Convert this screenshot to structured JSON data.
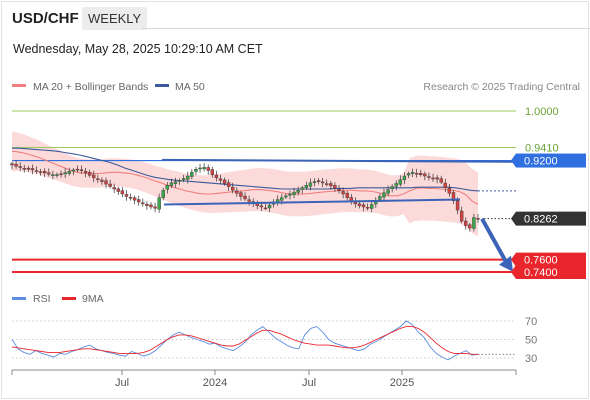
{
  "header": {
    "symbol": "USD/CHF",
    "timeframe": "WEEKLY",
    "timestamp": "Wednesday, May 28, 2025 10:29:10 AM CET"
  },
  "colors": {
    "ma20": "#f08080",
    "ma50": "#3a5a9c",
    "band_fill": "#fbd3d3",
    "bull": "#3aa84a",
    "bear": "#d24444",
    "resistance": "#9ccb5c",
    "pivot": "#2f6fe0",
    "support": "#e8262b",
    "trend": "#3b64b8",
    "rsi": "#5b8de0",
    "rsi_ma": "#e8262b",
    "current": "#333333"
  },
  "main_legend": {
    "ma20_label": "MA 20 + Bollinger Bands",
    "ma50_label": "MA 50",
    "credit": "Research © 2025 Trading Central"
  },
  "rsi_legend": {
    "rsi_label": "RSI",
    "ma_label": "9MA"
  },
  "chart_data": [
    {
      "type": "candlestick",
      "title": "USD/CHF",
      "ylim": [
        0.735,
        1.015
      ],
      "x_ticks": [
        "Jul",
        "2024",
        "Jul",
        "2025"
      ],
      "series": [
        {
          "name": "MA 20 + Bollinger Bands"
        },
        {
          "name": "MA 50"
        }
      ],
      "close": [
        0.9128,
        0.9108,
        0.909,
        0.907,
        0.906,
        0.9048,
        0.903,
        0.9015,
        0.8998,
        0.898,
        0.897,
        0.8972,
        0.8985,
        0.9005,
        0.9025,
        0.9048,
        0.906,
        0.904,
        0.9,
        0.896,
        0.892,
        0.889,
        0.886,
        0.882,
        0.878,
        0.874,
        0.87,
        0.866,
        0.862,
        0.859,
        0.856,
        0.853,
        0.85,
        0.847,
        0.845,
        0.843,
        0.86,
        0.872,
        0.88,
        0.884,
        0.886,
        0.888,
        0.891,
        0.895,
        0.901,
        0.906,
        0.908,
        0.909,
        0.904,
        0.897,
        0.892,
        0.888,
        0.883,
        0.878,
        0.872,
        0.867,
        0.862,
        0.858,
        0.854,
        0.85,
        0.847,
        0.845,
        0.843,
        0.848,
        0.853,
        0.857,
        0.86,
        0.863,
        0.866,
        0.869,
        0.872,
        0.876,
        0.88,
        0.884,
        0.886,
        0.886,
        0.884,
        0.882,
        0.879,
        0.875,
        0.871,
        0.866,
        0.86,
        0.855,
        0.85,
        0.847,
        0.845,
        0.844,
        0.849,
        0.856,
        0.862,
        0.868,
        0.873,
        0.878,
        0.883,
        0.889,
        0.895,
        0.899,
        0.901,
        0.899,
        0.897,
        0.895,
        0.893,
        0.891,
        0.89,
        0.885,
        0.876,
        0.867,
        0.855,
        0.84,
        0.822,
        0.815,
        0.811,
        0.828,
        0.826
      ],
      "ma20": [
        0.935,
        0.934,
        0.932,
        0.929,
        0.926,
        0.922,
        0.918,
        0.914,
        0.91,
        0.906,
        0.902,
        0.9,
        0.899,
        0.899,
        0.899,
        0.9,
        0.901,
        0.901,
        0.9,
        0.899,
        0.897,
        0.894,
        0.891,
        0.887,
        0.884,
        0.88,
        0.877,
        0.874,
        0.871,
        0.869,
        0.867,
        0.866,
        0.866,
        0.867,
        0.868,
        0.869,
        0.87,
        0.871,
        0.872,
        0.873,
        0.873,
        0.872,
        0.871,
        0.869,
        0.867,
        0.866,
        0.866,
        0.866,
        0.867,
        0.868,
        0.869,
        0.87,
        0.871,
        0.872,
        0.872,
        0.872,
        0.871,
        0.871,
        0.87,
        0.868,
        0.865,
        0.863,
        0.863,
        0.866,
        0.871,
        0.875,
        0.876,
        0.875,
        0.875,
        0.874,
        0.873,
        0.872,
        0.87,
        0.865,
        0.855,
        0.849
      ],
      "ma50": [
        0.94,
        0.94,
        0.939,
        0.938,
        0.937,
        0.936,
        0.935,
        0.933,
        0.931,
        0.929,
        0.926,
        0.923,
        0.92,
        0.917,
        0.913,
        0.908,
        0.904,
        0.9,
        0.896,
        0.893,
        0.891,
        0.889,
        0.888,
        0.887,
        0.886,
        0.885,
        0.884,
        0.883,
        0.882,
        0.881,
        0.88,
        0.879,
        0.878,
        0.877,
        0.876,
        0.875,
        0.874,
        0.874,
        0.874,
        0.874,
        0.874,
        0.874,
        0.874,
        0.875,
        0.875,
        0.875,
        0.876,
        0.876,
        0.876,
        0.876,
        0.876,
        0.876,
        0.876,
        0.876,
        0.877,
        0.877,
        0.877,
        0.877,
        0.877,
        0.876,
        0.874,
        0.872,
        0.871
      ],
      "levels": [
        {
          "value": 1.0,
          "label": "1.0000",
          "kind": "resistance"
        },
        {
          "value": 0.941,
          "label": "0.9410",
          "kind": "resistance"
        },
        {
          "value": 0.92,
          "label": "0.9200",
          "kind": "pivot"
        },
        {
          "value": 0.8262,
          "label": "0.8262",
          "kind": "current"
        },
        {
          "value": 0.76,
          "label": "0.7600",
          "kind": "support"
        },
        {
          "value": 0.74,
          "label": "0.7400",
          "kind": "support"
        }
      ],
      "channel": {
        "upper": [
          [
            0.921,
            0.918
          ]
        ],
        "lower": [
          [
            0.849,
            0.857
          ]
        ]
      },
      "forecast_target": 0.75
    },
    {
      "type": "line",
      "title": "RSI",
      "ylim": [
        20,
        80
      ],
      "y_ticks": [
        70,
        50,
        30
      ],
      "series": [
        {
          "name": "RSI",
          "values": [
            50,
            40,
            36,
            34,
            38,
            35,
            33,
            31,
            35,
            34,
            37,
            39,
            42,
            44,
            40,
            38,
            36,
            35,
            33,
            32,
            37,
            35,
            32,
            34,
            38,
            44,
            50,
            55,
            58,
            55,
            52,
            50,
            48,
            45,
            46,
            42,
            40,
            38,
            42,
            47,
            55,
            60,
            64,
            58,
            52,
            48,
            44,
            41,
            40,
            55,
            62,
            64,
            58,
            50,
            46,
            44,
            42,
            40,
            38,
            40,
            45,
            48,
            52,
            56,
            60,
            64,
            70,
            66,
            58,
            52,
            42,
            35,
            31,
            28,
            32,
            35,
            38,
            33,
            34
          ]
        },
        {
          "name": "9MA",
          "values": [
            42,
            41,
            40,
            39,
            38,
            37,
            36,
            36,
            36,
            37,
            38,
            39,
            40,
            40,
            39,
            38,
            37,
            36,
            35,
            35,
            35,
            35,
            36,
            38,
            42,
            46,
            50,
            53,
            55,
            55,
            54,
            52,
            50,
            48,
            46,
            44,
            43,
            43,
            45,
            49,
            53,
            57,
            60,
            60,
            58,
            56,
            53,
            50,
            48,
            46,
            45,
            44,
            44,
            44,
            43,
            42,
            41,
            41,
            42,
            44,
            47,
            50,
            53,
            56,
            59,
            62,
            64,
            64,
            62,
            58,
            52,
            46,
            41,
            37,
            35,
            35,
            35,
            34,
            34
          ]
        }
      ]
    }
  ]
}
